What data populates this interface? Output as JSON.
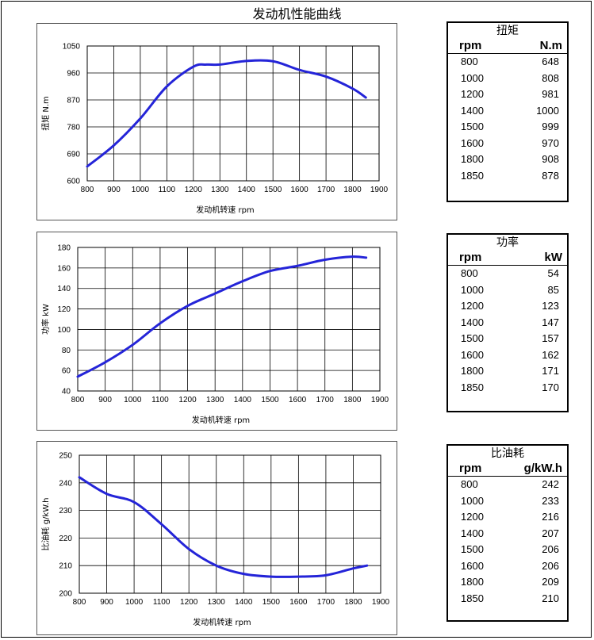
{
  "title": "发动机性能曲线",
  "charts": [
    {
      "id": "torque",
      "chart_data": {
        "type": "line",
        "xlabel": "发动机转速  rpm",
        "ylabel": "扭矩 N.m",
        "xlim": [
          800,
          1900
        ],
        "ylim": [
          600,
          1050
        ],
        "xticks": [
          800,
          900,
          1000,
          1100,
          1200,
          1300,
          1400,
          1500,
          1600,
          1700,
          1800,
          1900
        ],
        "yticks": [
          600,
          690,
          780,
          870,
          960,
          1050
        ],
        "grid": true,
        "line_color": "#2424d8",
        "x": [
          800,
          900,
          1000,
          1100,
          1200,
          1250,
          1300,
          1400,
          1500,
          1600,
          1700,
          1800,
          1850
        ],
        "y": [
          648,
          718,
          808,
          915,
          981,
          988,
          988,
          1000,
          999,
          970,
          948,
          908,
          878
        ]
      }
    },
    {
      "id": "power",
      "chart_data": {
        "type": "line",
        "xlabel": "发动机转速 rpm",
        "ylabel": "功率 kW",
        "xlim": [
          800,
          1900
        ],
        "ylim": [
          40,
          180
        ],
        "xticks": [
          800,
          900,
          1000,
          1100,
          1200,
          1300,
          1400,
          1500,
          1600,
          1700,
          1800,
          1900
        ],
        "yticks": [
          40,
          60,
          80,
          100,
          120,
          140,
          160,
          180
        ],
        "grid": true,
        "line_color": "#2424d8",
        "x": [
          800,
          900,
          1000,
          1100,
          1200,
          1300,
          1400,
          1500,
          1600,
          1700,
          1800,
          1850
        ],
        "y": [
          54,
          68,
          85,
          106,
          123,
          135,
          147,
          157,
          162,
          168,
          171,
          170
        ]
      }
    },
    {
      "id": "bsfc",
      "chart_data": {
        "type": "line",
        "xlabel": "发动机转速 rpm",
        "ylabel": "比油耗 g/kW.h",
        "xlim": [
          800,
          1900
        ],
        "ylim": [
          200,
          250
        ],
        "xticks": [
          800,
          900,
          1000,
          1100,
          1200,
          1300,
          1400,
          1500,
          1600,
          1700,
          1800,
          1900
        ],
        "yticks": [
          200,
          210,
          220,
          230,
          240,
          250
        ],
        "grid": true,
        "line_color": "#2424d8",
        "x": [
          800,
          900,
          1000,
          1100,
          1200,
          1300,
          1400,
          1500,
          1600,
          1700,
          1800,
          1850
        ],
        "y": [
          242,
          236,
          233,
          225,
          216,
          210,
          207,
          206,
          206,
          206.5,
          209,
          210
        ]
      }
    }
  ],
  "tables": [
    {
      "title": "扭矩",
      "col_rpm": "rpm",
      "col_unit": "N.m",
      "rows": [
        [
          "800",
          "648"
        ],
        [
          "1000",
          "808"
        ],
        [
          "1200",
          "981"
        ],
        [
          "1400",
          "1000"
        ],
        [
          "1500",
          "999"
        ],
        [
          "1600",
          "970"
        ],
        [
          "1800",
          "908"
        ],
        [
          "1850",
          "878"
        ]
      ]
    },
    {
      "title": "功率",
      "col_rpm": "rpm",
      "col_unit": "kW",
      "rows": [
        [
          "800",
          "54"
        ],
        [
          "1000",
          "85"
        ],
        [
          "1200",
          "123"
        ],
        [
          "1400",
          "147"
        ],
        [
          "1500",
          "157"
        ],
        [
          "1600",
          "162"
        ],
        [
          "1800",
          "171"
        ],
        [
          "1850",
          "170"
        ]
      ]
    },
    {
      "title": "比油耗",
      "col_rpm": "rpm",
      "col_unit": "g/kW.h",
      "rows": [
        [
          "800",
          "242"
        ],
        [
          "1000",
          "233"
        ],
        [
          "1200",
          "216"
        ],
        [
          "1400",
          "207"
        ],
        [
          "1500",
          "206"
        ],
        [
          "1600",
          "206"
        ],
        [
          "1800",
          "209"
        ],
        [
          "1850",
          "210"
        ]
      ]
    }
  ]
}
